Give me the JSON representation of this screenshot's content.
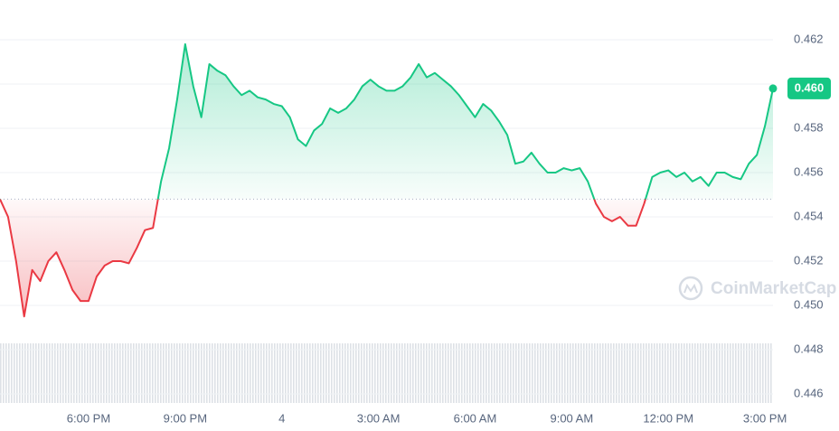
{
  "chart_data": {
    "type": "line",
    "categories": [
      null,
      null,
      null,
      null,
      null,
      null,
      null,
      null,
      null,
      null,
      null,
      "6:00 PM",
      null,
      null,
      null,
      null,
      null,
      null,
      null,
      null,
      null,
      null,
      null,
      "9:00 PM",
      null,
      null,
      null,
      null,
      null,
      null,
      null,
      null,
      null,
      null,
      null,
      "4",
      null,
      null,
      null,
      null,
      null,
      null,
      null,
      null,
      null,
      null,
      null,
      "3:00 AM",
      null,
      null,
      null,
      null,
      null,
      null,
      null,
      null,
      null,
      null,
      null,
      "6:00 AM",
      null,
      null,
      null,
      null,
      null,
      null,
      null,
      null,
      null,
      null,
      null,
      "9:00 AM",
      null,
      null,
      null,
      null,
      null,
      null,
      null,
      null,
      null,
      null,
      null,
      "12:00 PM",
      null,
      null,
      null,
      null,
      null,
      null,
      null,
      null,
      null,
      null,
      null,
      "3:00 PM",
      null
    ],
    "values": [
      0.4548,
      0.454,
      0.452,
      0.4495,
      0.4516,
      0.4511,
      0.452,
      0.4524,
      0.4516,
      0.4507,
      0.4502,
      0.4502,
      0.4513,
      0.4518,
      0.452,
      0.452,
      0.4519,
      0.4526,
      0.4534,
      0.4535,
      0.4556,
      0.4571,
      0.4593,
      0.4618,
      0.4599,
      0.4585,
      0.4609,
      0.4606,
      0.4604,
      0.4599,
      0.4595,
      0.4597,
      0.4594,
      0.4593,
      0.4591,
      0.459,
      0.4585,
      0.4575,
      0.4572,
      0.4579,
      0.4582,
      0.4589,
      0.4587,
      0.4589,
      0.4593,
      0.4599,
      0.4602,
      0.4599,
      0.4597,
      0.4597,
      0.4599,
      0.4603,
      0.4609,
      0.4603,
      0.4605,
      0.4602,
      0.4599,
      0.4595,
      0.459,
      0.4585,
      0.4591,
      0.4588,
      0.4583,
      0.4577,
      0.4564,
      0.4565,
      0.4569,
      0.4564,
      0.456,
      0.456,
      0.4562,
      0.4561,
      0.4562,
      0.4556,
      0.4546,
      0.454,
      0.4538,
      0.454,
      0.4536,
      0.4536,
      0.4546,
      0.4558,
      0.456,
      0.4561,
      0.4558,
      0.456,
      0.4556,
      0.4558,
      0.4554,
      0.456,
      0.456,
      0.4558,
      0.4557,
      0.4564,
      0.4568,
      0.4581,
      0.4598
    ],
    "baseline": 0.4548,
    "up_color": "#16c784",
    "down_color": "#ea3943",
    "price_tag": "0.460",
    "watermark": "CoinMarketCap",
    "ylim": [
      0.446,
      0.462
    ],
    "yticks": [
      0.446,
      0.448,
      {
        "value": 0.45,
        "label": "0.450"
      },
      0.452,
      0.454,
      0.456,
      0.458,
      {
        "value": 0.46,
        "label": "0.460"
      },
      0.462
    ],
    "grid": true
  }
}
